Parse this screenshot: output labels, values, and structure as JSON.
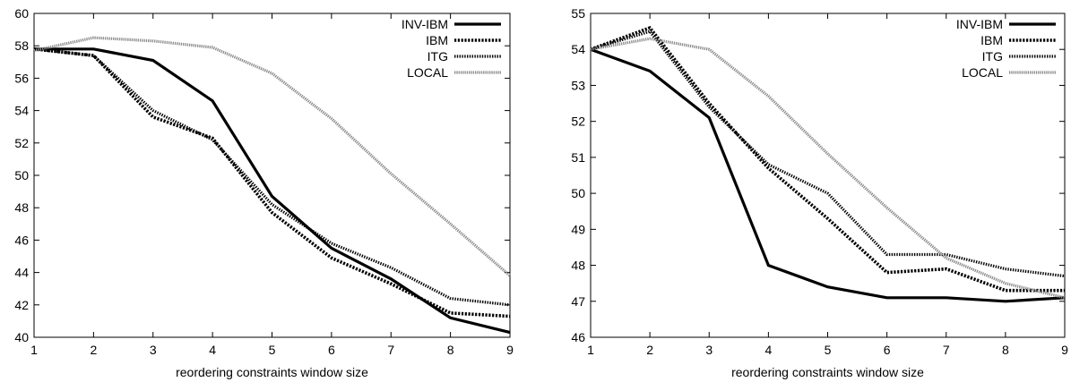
{
  "chart_data": [
    {
      "type": "line",
      "xlabel": "reordering constraints window size",
      "ylabel": "",
      "title": "",
      "x": [
        1,
        2,
        3,
        4,
        5,
        6,
        7,
        8,
        9
      ],
      "xlim": [
        1,
        9
      ],
      "ylim": [
        40,
        60
      ],
      "yticks": [
        40,
        42,
        44,
        46,
        48,
        50,
        52,
        54,
        56,
        58,
        60
      ],
      "xticks": [
        1,
        2,
        3,
        4,
        5,
        6,
        7,
        8,
        9
      ],
      "grid": false,
      "legend_position": "top-right",
      "series": [
        {
          "name": "INV-IBM",
          "values": [
            57.8,
            57.8,
            57.1,
            54.6,
            48.7,
            45.5,
            43.6,
            41.2,
            40.3
          ]
        },
        {
          "name": "IBM",
          "values": [
            57.8,
            57.4,
            53.6,
            52.3,
            47.7,
            44.9,
            43.3,
            41.5,
            41.3
          ]
        },
        {
          "name": "ITG",
          "values": [
            57.8,
            57.4,
            54.0,
            52.2,
            48.2,
            45.8,
            44.3,
            42.4,
            42.0
          ]
        },
        {
          "name": "LOCAL",
          "values": [
            57.7,
            58.5,
            58.3,
            57.9,
            56.3,
            53.5,
            50.1,
            47.0,
            43.8
          ]
        }
      ]
    },
    {
      "type": "line",
      "xlabel": "reordering constraints window size",
      "ylabel": "",
      "title": "",
      "x": [
        1,
        2,
        3,
        4,
        5,
        6,
        7,
        8,
        9
      ],
      "xlim": [
        1,
        9
      ],
      "ylim": [
        46,
        55
      ],
      "yticks": [
        46,
        47,
        48,
        49,
        50,
        51,
        52,
        53,
        54,
        55
      ],
      "xticks": [
        1,
        2,
        3,
        4,
        5,
        6,
        7,
        8,
        9
      ],
      "grid": false,
      "legend_position": "top-right",
      "series": [
        {
          "name": "INV-IBM",
          "values": [
            54.0,
            53.4,
            52.1,
            48.0,
            47.4,
            47.1,
            47.1,
            47.0,
            47.1
          ]
        },
        {
          "name": "IBM",
          "values": [
            54.0,
            54.6,
            52.5,
            50.7,
            49.3,
            47.8,
            47.9,
            47.3,
            47.3
          ]
        },
        {
          "name": "ITG",
          "values": [
            54.0,
            54.5,
            52.4,
            50.8,
            50.0,
            48.3,
            48.3,
            47.9,
            47.7
          ]
        },
        {
          "name": "LOCAL",
          "values": [
            54.0,
            54.3,
            54.0,
            52.7,
            51.1,
            49.6,
            48.2,
            47.5,
            47.1
          ]
        }
      ]
    }
  ],
  "series_styles": {
    "INV-IBM": {
      "color": "#000000",
      "style": "solid-thick"
    },
    "IBM": {
      "color": "#000000",
      "style": "dotted-thick"
    },
    "ITG": {
      "color": "#000000",
      "style": "dotted-fine"
    },
    "LOCAL": {
      "color": "#8a8a8a",
      "style": "dotted-gray"
    }
  }
}
